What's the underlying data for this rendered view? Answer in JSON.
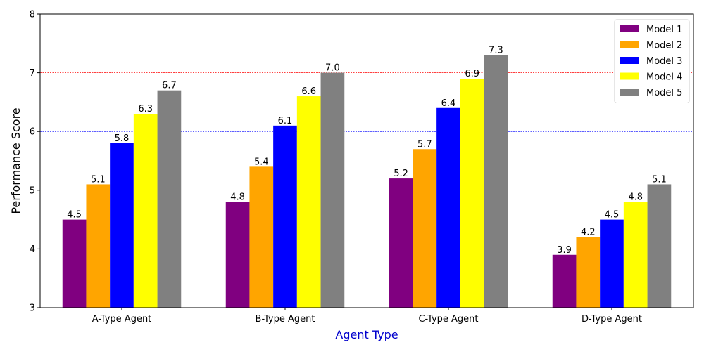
{
  "chart_data": {
    "type": "bar",
    "title": "",
    "xlabel": "Agent Type",
    "ylabel": "Performance Score",
    "categories": [
      "A-Type Agent",
      "B-Type Agent",
      "C-Type Agent",
      "D-Type Agent"
    ],
    "series": [
      {
        "name": "Model 1",
        "values": [
          4.5,
          4.8,
          5.2,
          3.9
        ],
        "color": "#800080"
      },
      {
        "name": "Model 2",
        "values": [
          5.1,
          5.4,
          5.7,
          4.2
        ],
        "color": "#FFA500"
      },
      {
        "name": "Model 3",
        "values": [
          5.8,
          6.1,
          6.4,
          4.5
        ],
        "color": "#0000FF"
      },
      {
        "name": "Model 4",
        "values": [
          6.3,
          6.6,
          6.9,
          4.8
        ],
        "color": "#FFFF00"
      },
      {
        "name": "Model 5",
        "values": [
          6.7,
          7.0,
          7.3,
          5.1
        ],
        "color": "#808080"
      }
    ],
    "ylim": [
      3,
      8
    ],
    "yticks": [
      3,
      4,
      5,
      6,
      7,
      8
    ],
    "reference_lines": [
      {
        "y": 6,
        "color": "#0000FF",
        "style": "dashed"
      },
      {
        "y": 7,
        "color": "#FF0000",
        "style": "dashed"
      }
    ],
    "xlabel_color": "#0000CC",
    "legend_position": "top-right",
    "grid": false
  }
}
